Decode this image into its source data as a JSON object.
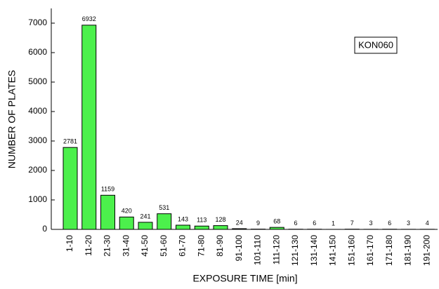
{
  "chart_data": {
    "type": "bar",
    "x_label": "EXPOSURE TIME  [min]",
    "y_label": "NUMBER OF PLATES",
    "annotation": "KON060",
    "categories": [
      "1-10",
      "11-20",
      "21-30",
      "31-40",
      "41-50",
      "51-60",
      "61-70",
      "71-80",
      "81-90",
      "91-100",
      "101-110",
      "111-120",
      "121-130",
      "131-140",
      "141-150",
      "151-160",
      "161-170",
      "171-180",
      "181-190",
      "191-200"
    ],
    "values": [
      2781,
      6932,
      1159,
      420,
      241,
      531,
      143,
      113,
      128,
      24,
      9,
      68,
      6,
      6,
      1,
      7,
      3,
      6,
      3,
      4
    ],
    "color": "#4cf04c",
    "ylim": [
      0,
      7500
    ],
    "yticks": [
      0,
      1000,
      2000,
      3000,
      4000,
      5000,
      6000,
      7000
    ]
  }
}
